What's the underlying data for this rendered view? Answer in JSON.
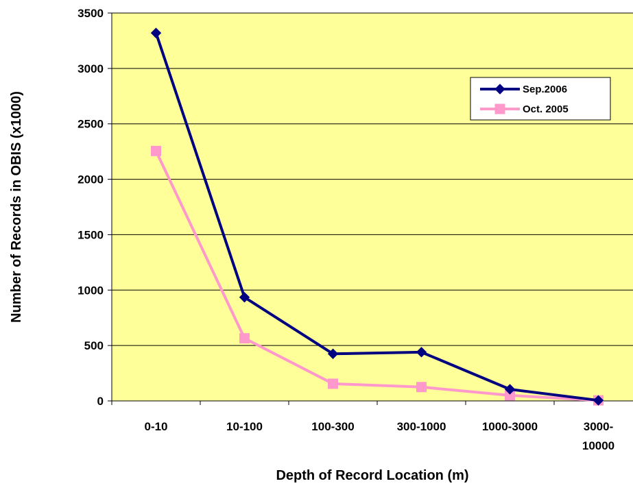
{
  "chart_data": {
    "type": "line",
    "categories": [
      "0-10",
      "10-100",
      "100-300",
      "300-1000",
      "1000-3000",
      "3000-\n10000"
    ],
    "xlabel": "Depth of Record Location (m)",
    "ylabel": "Number of Records in OBIS (x1000)",
    "ylim": [
      0,
      3500
    ],
    "yticks": [
      "0",
      "500",
      "1000",
      "1500",
      "2000",
      "2500",
      "3000",
      "3500"
    ],
    "grid": true,
    "legend_position": "top-right",
    "plot_background": "#ffff99",
    "series": [
      {
        "name": "Sep.2006",
        "values": [
          3320,
          935,
          425,
          440,
          105,
          5
        ],
        "color": "#000080",
        "marker": "diamond"
      },
      {
        "name": "Oct. 2005",
        "values": [
          2255,
          565,
          155,
          125,
          50,
          5
        ],
        "color": "#ff99cc",
        "marker": "square"
      }
    ]
  }
}
